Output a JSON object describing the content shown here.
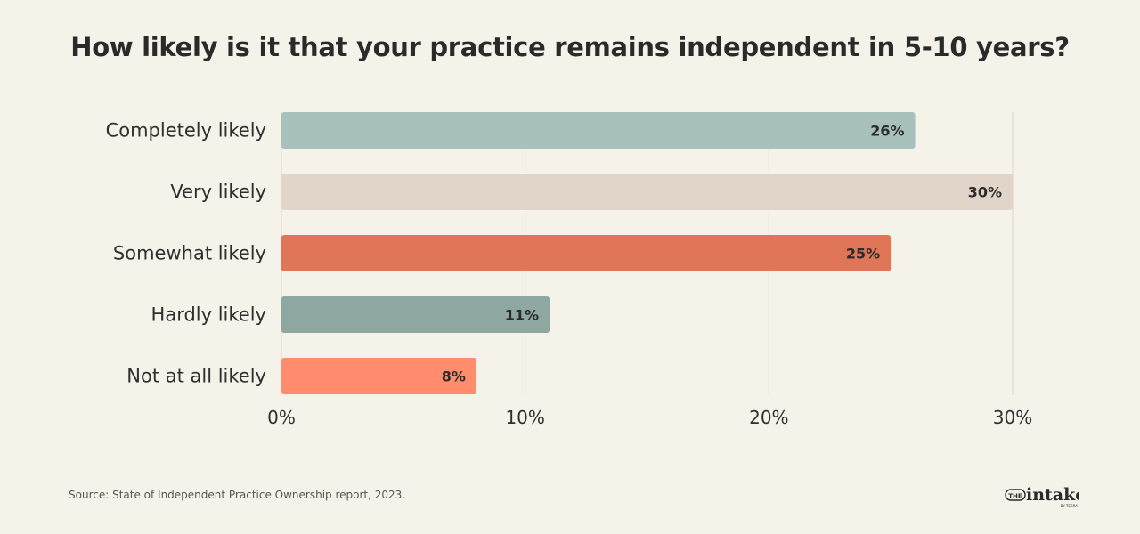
{
  "chart_data": {
    "type": "bar",
    "orientation": "horizontal",
    "title": "How likely is it that your practice remains independent in 5-10 years?",
    "categories": [
      "Completely likely",
      "Very likely",
      "Somewhat likely",
      "Hardly likely",
      "Not at all likely"
    ],
    "values": [
      26,
      30,
      25,
      11,
      8
    ],
    "value_labels": [
      "26%",
      "30%",
      "25%",
      "11%",
      "8%"
    ],
    "colors": [
      "#a8c1bc",
      "#e0d5c8",
      "#e07558",
      "#8fa7a1",
      "#ff8c6c"
    ],
    "xlim": [
      0,
      30
    ],
    "xticks": [
      0,
      10,
      20,
      30
    ],
    "xtick_labels": [
      "0%",
      "10%",
      "20%",
      "30%"
    ],
    "grid": true,
    "xlabel": "",
    "ylabel": ""
  },
  "footer": {
    "source": "Source: State of Independent Practice Ownership report, 2023."
  },
  "logo": {
    "text_the": "THE",
    "text_main": "intake",
    "text_sub": "BY TEBRA"
  }
}
